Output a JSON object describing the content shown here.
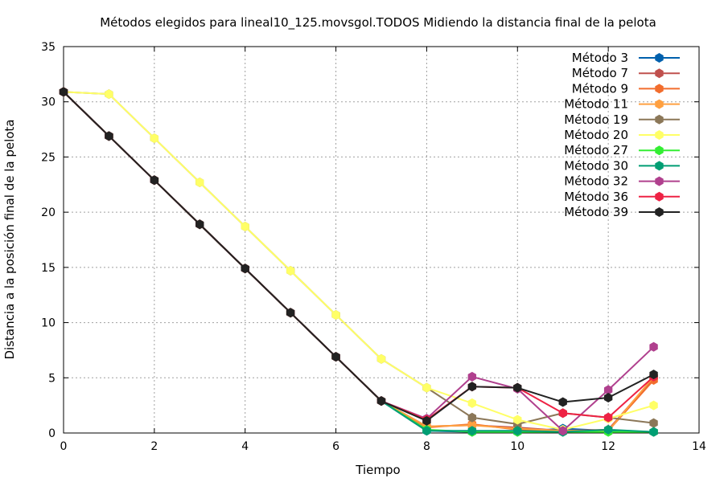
{
  "chart_data": {
    "type": "line",
    "title": "Métodos elegidos para lineal10_125.movsgol.TODOS Midiendo la distancia final de la pelota",
    "xlabel": "Tiempo",
    "ylabel": "Distancia a la posición final de la pelota",
    "xlim": [
      0,
      14
    ],
    "ylim": [
      0,
      35
    ],
    "xticks": [
      0,
      2,
      4,
      6,
      8,
      10,
      12,
      14
    ],
    "yticks": [
      0,
      5,
      10,
      15,
      20,
      25,
      30,
      35
    ],
    "grid": true,
    "legend_position": "top-right",
    "x": [
      0,
      1,
      2,
      3,
      4,
      5,
      6,
      7,
      8,
      9,
      10,
      11,
      12,
      13
    ],
    "series": [
      {
        "name": "Método 3",
        "color": "#0060ad",
        "values": [
          30.9,
          26.9,
          22.9,
          18.9,
          14.9,
          10.9,
          6.9,
          2.9,
          0.2,
          0.1,
          0.1,
          0.4,
          0.2,
          0.1
        ]
      },
      {
        "name": "Método 7",
        "color": "#c0504d",
        "values": [
          30.9,
          26.9,
          22.9,
          18.9,
          14.9,
          10.9,
          6.9,
          2.9,
          0.6,
          0.7,
          0.5,
          0.2,
          0.3,
          5.0
        ]
      },
      {
        "name": "Método 9",
        "color": "#f26d2d",
        "values": [
          30.9,
          26.9,
          22.9,
          18.9,
          14.9,
          10.9,
          6.9,
          2.9,
          0.5,
          0.8,
          0.3,
          0.2,
          0.2,
          4.8
        ]
      },
      {
        "name": "Método 11",
        "color": "#ffa040",
        "values": [
          30.9,
          26.9,
          22.9,
          18.9,
          14.9,
          10.9,
          6.9,
          2.9,
          0.6,
          0.7,
          0.4,
          0.2,
          0.2,
          5.1
        ]
      },
      {
        "name": "Método 19",
        "color": "#8b7758",
        "values": [
          30.9,
          30.7,
          26.7,
          22.7,
          18.7,
          14.7,
          10.7,
          6.7,
          4.1,
          1.4,
          0.8,
          1.8,
          1.4,
          0.9
        ]
      },
      {
        "name": "Método 20",
        "color": "#ffff66",
        "values": [
          30.9,
          30.7,
          26.7,
          22.7,
          18.7,
          14.7,
          10.7,
          6.7,
          4.1,
          2.7,
          1.2,
          0.3,
          1.3,
          2.5
        ]
      },
      {
        "name": "Método 27",
        "color": "#33ee33",
        "values": [
          30.9,
          26.9,
          22.9,
          18.9,
          14.9,
          10.9,
          6.9,
          2.9,
          0.3,
          0.1,
          0.1,
          0.1,
          0.1,
          0.1
        ]
      },
      {
        "name": "Método 30",
        "color": "#009e73",
        "values": [
          30.9,
          26.9,
          22.9,
          18.9,
          14.9,
          10.9,
          6.9,
          2.9,
          0.2,
          0.2,
          0.2,
          0.1,
          0.3,
          0.1
        ]
      },
      {
        "name": "Método 32",
        "color": "#b0408e",
        "values": [
          30.9,
          26.9,
          22.9,
          18.9,
          14.9,
          10.9,
          6.9,
          2.9,
          1.3,
          5.1,
          4.0,
          0.2,
          3.9,
          7.8
        ]
      },
      {
        "name": "Método 36",
        "color": "#ee2244",
        "values": [
          30.9,
          26.9,
          22.9,
          18.9,
          14.9,
          10.9,
          6.9,
          2.9,
          1.2,
          4.2,
          4.1,
          1.8,
          1.4,
          5.1
        ]
      },
      {
        "name": "Método 39",
        "color": "#222222",
        "values": [
          30.9,
          26.9,
          22.9,
          18.9,
          14.9,
          10.9,
          6.9,
          2.9,
          1.1,
          4.2,
          4.1,
          2.8,
          3.2,
          5.3
        ]
      }
    ]
  }
}
